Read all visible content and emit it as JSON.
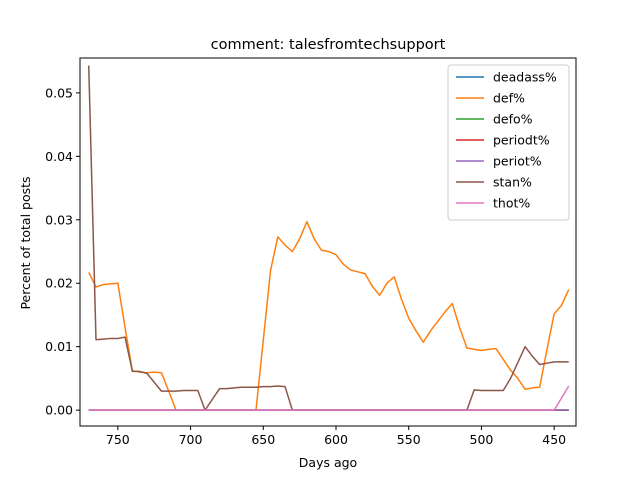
{
  "chart_data": {
    "type": "line",
    "title": "comment: talesfromtechsupport",
    "xlabel": "Days ago",
    "ylabel": "Percent of total posts",
    "x_inverted": true,
    "xlim": [
      776,
      435
    ],
    "ylim": [
      -0.0025,
      0.0555
    ],
    "xticks": [
      750,
      700,
      650,
      600,
      550,
      500,
      450
    ],
    "yticks": [
      0.0,
      0.01,
      0.02,
      0.03,
      0.04,
      0.05
    ],
    "xtick_labels": [
      "750",
      "700",
      "650",
      "600",
      "550",
      "500",
      "450"
    ],
    "ytick_labels": [
      "0.00",
      "0.01",
      "0.02",
      "0.03",
      "0.04",
      "0.05"
    ],
    "legend_position": "top-right",
    "grid": false,
    "x": [
      770,
      765,
      760,
      755,
      750,
      745,
      740,
      735,
      730,
      725,
      720,
      715,
      710,
      705,
      700,
      695,
      690,
      685,
      680,
      675,
      670,
      665,
      660,
      655,
      650,
      645,
      640,
      635,
      630,
      625,
      620,
      615,
      610,
      605,
      600,
      595,
      590,
      585,
      580,
      575,
      570,
      565,
      560,
      555,
      550,
      545,
      540,
      535,
      530,
      525,
      520,
      515,
      510,
      505,
      500,
      495,
      490,
      485,
      480,
      475,
      470,
      465,
      460,
      455,
      450,
      445,
      440
    ],
    "series": [
      {
        "name": "deadass%",
        "color": "#1f77b4",
        "values": [
          0,
          0,
          0,
          0,
          0,
          0,
          0,
          0,
          0,
          0,
          0,
          0,
          0,
          0,
          0,
          0,
          0,
          0,
          0,
          0,
          0,
          0,
          0,
          0,
          0,
          0,
          0,
          0,
          0,
          0,
          0,
          0,
          0,
          0,
          0,
          0,
          0,
          0,
          0,
          0,
          0,
          0,
          0,
          0,
          0,
          0,
          0,
          0,
          0,
          0,
          0,
          0,
          0,
          0,
          0,
          0,
          0,
          0,
          0,
          0,
          0,
          0,
          0,
          0,
          0,
          0,
          0
        ]
      },
      {
        "name": "def%",
        "color": "#ff7f0e",
        "values": [
          0.0217,
          0.0194,
          0.0198,
          0.0199,
          0.02,
          0.013,
          0.0062,
          0.006,
          0.0059,
          0.006,
          0.0059,
          0.003,
          0.0,
          0.0,
          0.0,
          0.0,
          0.0,
          0.0,
          0.0,
          0.0,
          0.0,
          0.0,
          0.0,
          0.0,
          0.011,
          0.022,
          0.0273,
          0.026,
          0.025,
          0.027,
          0.0297,
          0.027,
          0.0252,
          0.025,
          0.0245,
          0.023,
          0.0221,
          0.0218,
          0.0215,
          0.0195,
          0.0181,
          0.02,
          0.021,
          0.0175,
          0.0145,
          0.0125,
          0.0107,
          0.0125,
          0.014,
          0.0155,
          0.0168,
          0.013,
          0.0098,
          0.0096,
          0.0094,
          0.0096,
          0.0097,
          0.008,
          0.0063,
          0.005,
          0.0033,
          0.0035,
          0.0036,
          0.0095,
          0.0152,
          0.0165,
          0.019
        ]
      },
      {
        "name": "defo%",
        "color": "#2ca02c",
        "values": [
          0,
          0,
          0,
          0,
          0,
          0,
          0,
          0,
          0,
          0,
          0,
          0,
          0,
          0,
          0,
          0,
          0,
          0,
          0,
          0,
          0,
          0,
          0,
          0,
          0,
          0,
          0,
          0,
          0,
          0,
          0,
          0,
          0,
          0,
          0,
          0,
          0,
          0,
          0,
          0,
          0,
          0,
          0,
          0,
          0,
          0,
          0,
          0,
          0,
          0,
          0,
          0,
          0,
          0,
          0,
          0,
          0,
          0,
          0,
          0,
          0,
          0,
          0,
          0,
          0,
          0,
          0
        ]
      },
      {
        "name": "periodt%",
        "color": "#d62728",
        "values": [
          0,
          0,
          0,
          0,
          0,
          0,
          0,
          0,
          0,
          0,
          0,
          0,
          0,
          0,
          0,
          0,
          0,
          0,
          0,
          0,
          0,
          0,
          0,
          0,
          0,
          0,
          0,
          0,
          0,
          0,
          0,
          0,
          0,
          0,
          0,
          0,
          0,
          0,
          0,
          0,
          0,
          0,
          0,
          0,
          0,
          0,
          0,
          0,
          0,
          0,
          0,
          0,
          0,
          0,
          0,
          0,
          0,
          0,
          0,
          0,
          0,
          0,
          0,
          0,
          0,
          0,
          0
        ]
      },
      {
        "name": "periot%",
        "color": "#9467bd",
        "values": [
          0,
          0,
          0,
          0,
          0,
          0,
          0,
          0,
          0,
          0,
          0,
          0,
          0,
          0,
          0,
          0,
          0,
          0,
          0,
          0,
          0,
          0,
          0,
          0,
          0,
          0,
          0,
          0,
          0,
          0,
          0,
          0,
          0,
          0,
          0,
          0,
          0,
          0,
          0,
          0,
          0,
          0,
          0,
          0,
          0,
          0,
          0,
          0,
          0,
          0,
          0,
          0,
          0,
          0,
          0,
          0,
          0,
          0,
          0,
          0,
          0,
          0,
          0,
          0,
          0,
          0,
          0
        ]
      },
      {
        "name": "stan%",
        "color": "#8c564b",
        "values": [
          0.0543,
          0.0111,
          0.0112,
          0.0113,
          0.0113,
          0.0115,
          0.0061,
          0.0061,
          0.0058,
          0.0044,
          0.003,
          0.003,
          0.003,
          0.0031,
          0.0031,
          0.0031,
          0.0,
          0.0017,
          0.0034,
          0.0034,
          0.0035,
          0.0036,
          0.0036,
          0.0036,
          0.0037,
          0.0037,
          0.0038,
          0.0037,
          0.0,
          0.0,
          0.0,
          0.0,
          0.0,
          0.0,
          0.0,
          0.0,
          0.0,
          0.0,
          0.0,
          0.0,
          0.0,
          0.0,
          0.0,
          0.0,
          0.0,
          0.0,
          0.0,
          0.0,
          0.0,
          0.0,
          0.0,
          0.0,
          0.0,
          0.0032,
          0.0031,
          0.0031,
          0.0031,
          0.0031,
          0.005,
          0.0075,
          0.01,
          0.0085,
          0.0072,
          0.0074,
          0.0076,
          0.0076,
          0.0076
        ]
      },
      {
        "name": "thot%",
        "color": "#e377c2",
        "values": [
          0,
          0,
          0,
          0,
          0,
          0,
          0,
          0,
          0,
          0,
          0,
          0,
          0,
          0,
          0,
          0,
          0,
          0,
          0,
          0,
          0,
          0,
          0,
          0,
          0,
          0,
          0,
          0,
          0,
          0,
          0,
          0,
          0,
          0,
          0,
          0,
          0,
          0,
          0,
          0,
          0,
          0,
          0,
          0,
          0,
          0,
          0,
          0,
          0,
          0,
          0,
          0,
          0,
          0,
          0,
          0,
          0,
          0,
          0,
          0,
          0,
          0,
          0,
          0,
          0,
          0.0019,
          0.0038
        ]
      }
    ]
  }
}
